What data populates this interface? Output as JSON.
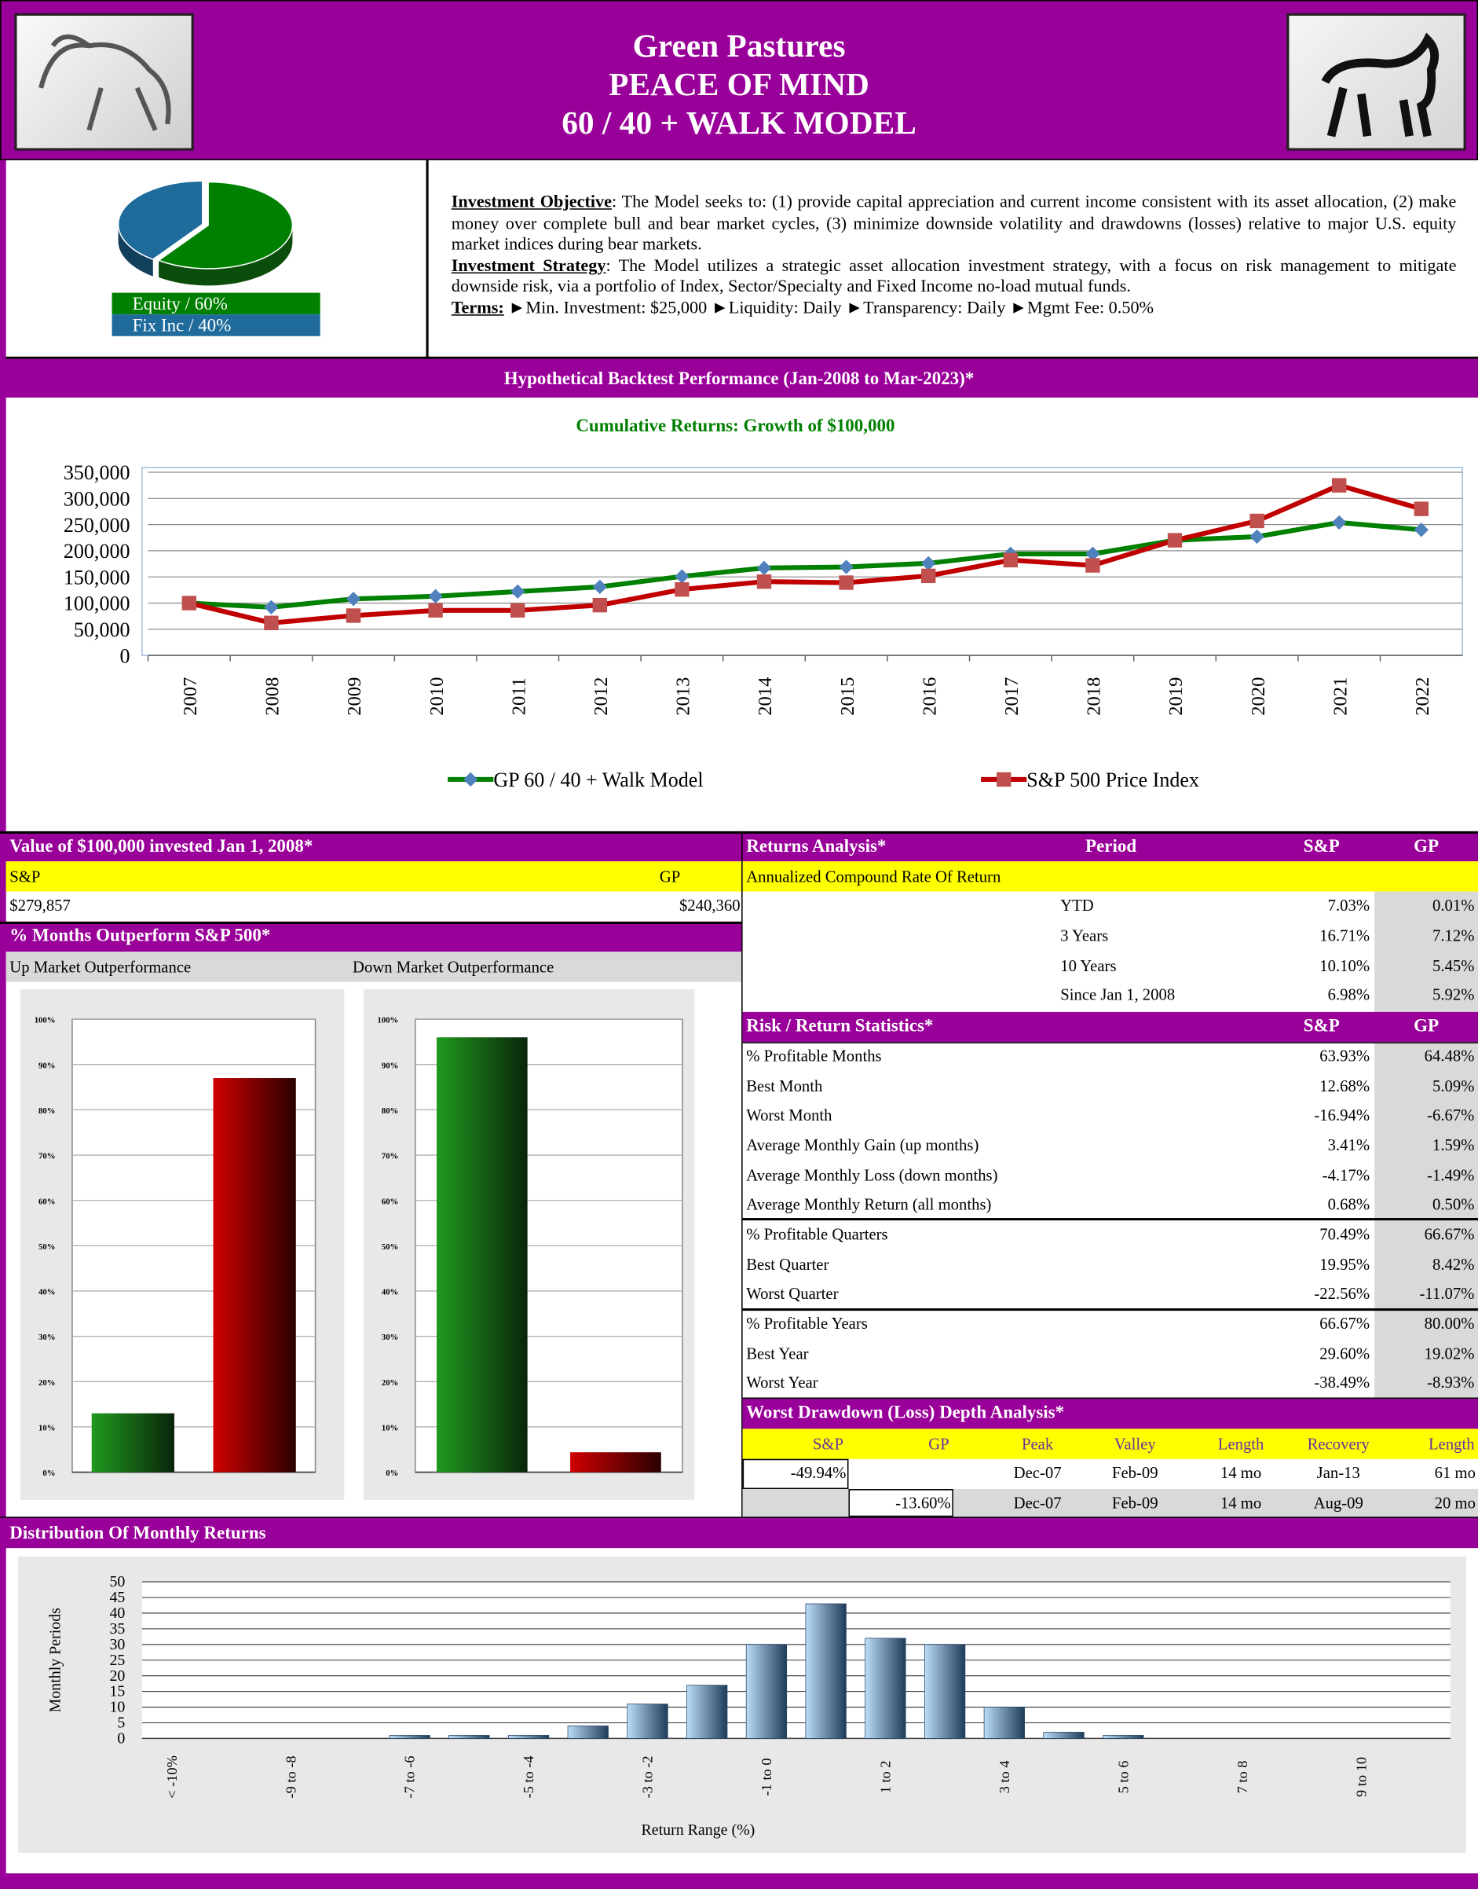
{
  "header": {
    "title_lines": [
      "Green Pastures",
      "PEACE OF MIND",
      "60 / 40 + WALK MODEL"
    ]
  },
  "description": {
    "objective_label": "Investment Objective",
    "objective_text": ": The Model seeks to: (1) provide capital appreciation and current income consistent with its asset allocation, (2) make money over complete bull and bear market cycles, (3) minimize downside volatility and drawdowns (losses) relative to major U.S. equity market indices during bear markets.",
    "strategy_label": "Investment Strategy",
    "strategy_text": ": The Model utilizes a strategic asset allocation investment strategy, with a focus on risk management to mitigate downside risk, via a portfolio of Index, Sector/Specialty and Fixed Income no-load mutual funds.",
    "terms_label": "Terms:",
    "terms": [
      "►Min. Investment: $25,000",
      "►Liquidity: Daily",
      "►Transparency: Daily",
      "►Mgmt Fee: 0.50%"
    ]
  },
  "sections": {
    "backtest": "Hypothetical Backtest Performance (Jan-2008 to Mar-2023)*",
    "value": "Value of $100,000 invested Jan 1, 2008*",
    "months": "% Months Outperform S&P 500*",
    "distribution": "Distribution Of Monthly Returns"
  },
  "value_table": {
    "headers": [
      "S&P",
      "GP"
    ],
    "values": [
      "$279,857",
      "$240,360"
    ]
  },
  "returns": {
    "title": "Returns Analysis*",
    "headers": [
      "Period",
      "S&P",
      "GP"
    ],
    "subheader": "Annualized Compound Rate Of Return",
    "rows": [
      [
        "YTD",
        "7.03%",
        "0.01%"
      ],
      [
        "3 Years",
        "16.71%",
        "7.12%"
      ],
      [
        "10 Years",
        "10.10%",
        "5.45%"
      ],
      [
        "Since Jan 1, 2008",
        "6.98%",
        "5.92%"
      ]
    ]
  },
  "risk": {
    "title": "Risk / Return Statistics*",
    "headers": [
      "S&P",
      "GP"
    ],
    "rows": [
      [
        "% Profitable Months",
        "63.93%",
        "64.48%"
      ],
      [
        "Best Month",
        "12.68%",
        "5.09%"
      ],
      [
        "Worst Month",
        "-16.94%",
        "-6.67%"
      ],
      [
        "Average Monthly Gain (up months)",
        "3.41%",
        "1.59%"
      ],
      [
        "Average Monthly Loss (down months)",
        "-4.17%",
        "-1.49%"
      ],
      [
        "Average Monthly Return (all months)",
        "0.68%",
        "0.50%"
      ],
      [
        "% Profitable Quarters",
        "70.49%",
        "66.67%"
      ],
      [
        "Best Quarter",
        "19.95%",
        "8.42%"
      ],
      [
        "Worst Quarter",
        "-22.56%",
        "-11.07%"
      ],
      [
        "% Profitable Years",
        "66.67%",
        "80.00%"
      ],
      [
        "Best Year",
        "29.60%",
        "19.02%"
      ],
      [
        "Worst Year",
        "-38.49%",
        "-8.93%"
      ]
    ]
  },
  "drawdown": {
    "title": "Worst Drawdown (Loss) Depth Analysis*",
    "headers": [
      "S&P",
      "GP",
      "Peak",
      "Valley",
      "Length",
      "Recovery",
      "Length"
    ],
    "rows": [
      [
        "-49.94%",
        null,
        "Dec-07",
        "Feb-09",
        "14 mo",
        "Jan-13",
        "61 mo"
      ],
      [
        null,
        "-13.60%",
        "Dec-07",
        "Feb-09",
        "14 mo",
        "Aug-09",
        "20 mo"
      ]
    ]
  },
  "chart_data": [
    {
      "type": "pie",
      "categories": [
        "Equity / 60%",
        "Fix Inc / 40%"
      ],
      "values": [
        60,
        40
      ],
      "colors": [
        "#008000",
        "#1f6b9b"
      ]
    },
    {
      "type": "line",
      "title": "Cumulative Returns: Growth of $100,000",
      "categories": [
        "2007",
        "2008",
        "2009",
        "2010",
        "2011",
        "2012",
        "2013",
        "2014",
        "2015",
        "2016",
        "2017",
        "2018",
        "2019",
        "2020",
        "2021",
        "2022"
      ],
      "series": [
        {
          "name": "GP 60 / 40 + Walk Model",
          "color": "#008000",
          "marker": "diamond",
          "marker_color": "#4f81bd",
          "values": [
            100000,
            92000,
            108000,
            113000,
            122000,
            131000,
            151000,
            167000,
            169000,
            176000,
            194000,
            194000,
            220000,
            227000,
            254000,
            240000
          ]
        },
        {
          "name": "S&P 500 Price Index",
          "color": "#c00000",
          "marker": "square",
          "marker_color": "#c0504d",
          "values": [
            100000,
            62000,
            76000,
            86000,
            86000,
            96000,
            126000,
            141000,
            139000,
            152000,
            182000,
            172000,
            220000,
            257000,
            325000,
            280000
          ]
        }
      ],
      "ylim": [
        0,
        350000
      ],
      "yticks": [
        0,
        {
          "value": 50000,
          "label": "50,000"
        },
        {
          "value": 100000,
          "label": "100,000"
        },
        {
          "value": 150000,
          "label": "150,000"
        },
        {
          "value": 200000,
          "label": "200,000"
        },
        {
          "value": 250000,
          "label": "250,000"
        },
        {
          "value": 300000,
          "label": "300,000"
        },
        {
          "value": 350000,
          "label": "350,000"
        }
      ],
      "grid": true
    },
    {
      "type": "bar",
      "title": "Up Market Outperformance",
      "categories": [
        null,
        null
      ],
      "values": [
        13,
        87
      ],
      "colors": [
        "#008000",
        "#c00000"
      ],
      "ylim": [
        0,
        100
      ],
      "yticks": [
        {
          "value": 0,
          "label": "0%"
        },
        {
          "value": 10,
          "label": "10%"
        },
        {
          "value": 20,
          "label": "20%"
        },
        {
          "value": 30,
          "label": "30%"
        },
        {
          "value": 40,
          "label": "40%"
        },
        {
          "value": 50,
          "label": "50%"
        },
        {
          "value": 60,
          "label": "60%"
        },
        {
          "value": 70,
          "label": "70%"
        },
        {
          "value": 80,
          "label": "80%"
        },
        {
          "value": 90,
          "label": "90%"
        },
        {
          "value": 100,
          "label": "100%"
        }
      ],
      "grid": true
    },
    {
      "type": "bar",
      "title": "Down Market Outperformance",
      "categories": [
        null,
        null
      ],
      "values": [
        96,
        4.4
      ],
      "colors": [
        "#008000",
        "#c00000"
      ],
      "ylim": [
        0,
        100
      ],
      "yticks": [
        {
          "value": 0,
          "label": "0%"
        },
        {
          "value": 10,
          "label": "10%"
        },
        {
          "value": 20,
          "label": "20%"
        },
        {
          "value": 30,
          "label": "30%"
        },
        {
          "value": 40,
          "label": "40%"
        },
        {
          "value": 50,
          "label": "50%"
        },
        {
          "value": 60,
          "label": "60%"
        },
        {
          "value": 70,
          "label": "70%"
        },
        {
          "value": 80,
          "label": "80%"
        },
        {
          "value": 90,
          "label": "90%"
        },
        {
          "value": 100,
          "label": "100%"
        }
      ],
      "grid": true
    },
    {
      "type": "bar",
      "x_label": "Return Range (%)",
      "y_label": "Monthly Periods",
      "categories": [
        "< -10%",
        null,
        "-9 to -8",
        null,
        "-7 to -6",
        null,
        "-5 to -4",
        null,
        "-3 to -2",
        null,
        "-1 to 0",
        null,
        "1 to 2",
        null,
        "3 to 4",
        null,
        "5 to 6",
        null,
        "7 to 8",
        null,
        "9 to 10",
        null
      ],
      "values": [
        0,
        0,
        0,
        0,
        1,
        1,
        1,
        4,
        11,
        17,
        30,
        43,
        32,
        30,
        10,
        2,
        1,
        0,
        0,
        0,
        0,
        0
      ],
      "color": "#9dc3e6",
      "ylim": [
        0,
        50
      ],
      "yticks": [
        0,
        5,
        10,
        15,
        20,
        25,
        30,
        35,
        40,
        45,
        50
      ],
      "grid": true
    }
  ]
}
